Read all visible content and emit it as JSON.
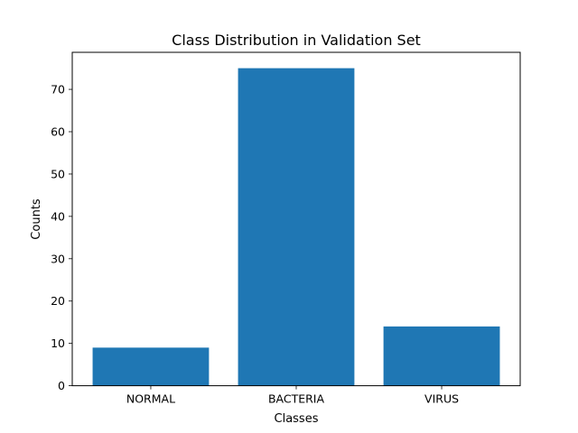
{
  "chart_data": {
    "type": "bar",
    "title": "Class Distribution in Validation Set",
    "xlabel": "Classes",
    "ylabel": "Counts",
    "categories": [
      "NORMAL",
      "BACTERIA",
      "VIRUS"
    ],
    "values": [
      9,
      75,
      14
    ],
    "ylim": [
      0,
      78.75
    ],
    "yticks": [
      0,
      10,
      20,
      30,
      40,
      50,
      60,
      70
    ],
    "grid": false,
    "bar_color": "#1f77b4"
  }
}
